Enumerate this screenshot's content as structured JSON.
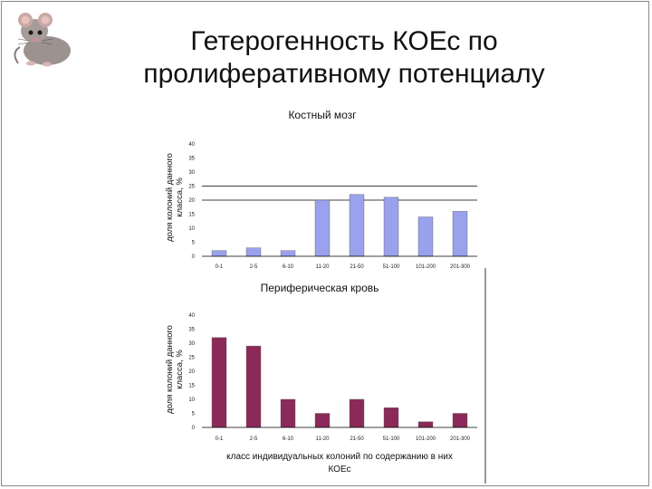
{
  "slide": {
    "title_line1": "Гетерогенность  КОЕс по",
    "title_line2": "пролиферативному потенциалу"
  },
  "logo": {
    "icon": "mouse-icon"
  },
  "colors": {
    "chart1_bar": "#9aa2ee",
    "chart2_bar": "#8b2a59"
  },
  "chart_data": [
    {
      "type": "bar",
      "title": "Костный мозг",
      "ylabel_line1": "доля колоний данного",
      "ylabel_line2": "класса, %",
      "categories": [
        "0-1",
        "2-5",
        "6-10",
        "11-20",
        "21-50",
        "51-100",
        "101-200",
        "201-300"
      ],
      "values": [
        2,
        3,
        2,
        20,
        22,
        21,
        14,
        16
      ],
      "yticks": [
        "0",
        "5",
        "10",
        "15",
        "20",
        "25",
        "30",
        "35",
        "40"
      ],
      "ylim": [
        0,
        40
      ],
      "reference_lines": [
        20,
        25
      ],
      "grid": false
    },
    {
      "type": "bar",
      "title": "Периферическая кровь",
      "ylabel_line1": "доля колоний данного",
      "ylabel_line2": "класса, %",
      "xlabel_line1": "класс индивидуальных колоний по содержанию в них",
      "xlabel_line2": "КОЕс",
      "categories": [
        "0-1",
        "2-5",
        "6-10",
        "11-20",
        "21-50",
        "51-100",
        "101-200",
        "201-300"
      ],
      "values": [
        32,
        29,
        10,
        5,
        10,
        7,
        2,
        5
      ],
      "yticks": [
        "0",
        "5",
        "10",
        "15",
        "20",
        "25",
        "30",
        "35",
        "40"
      ],
      "ylim": [
        0,
        40
      ],
      "grid": false
    }
  ]
}
